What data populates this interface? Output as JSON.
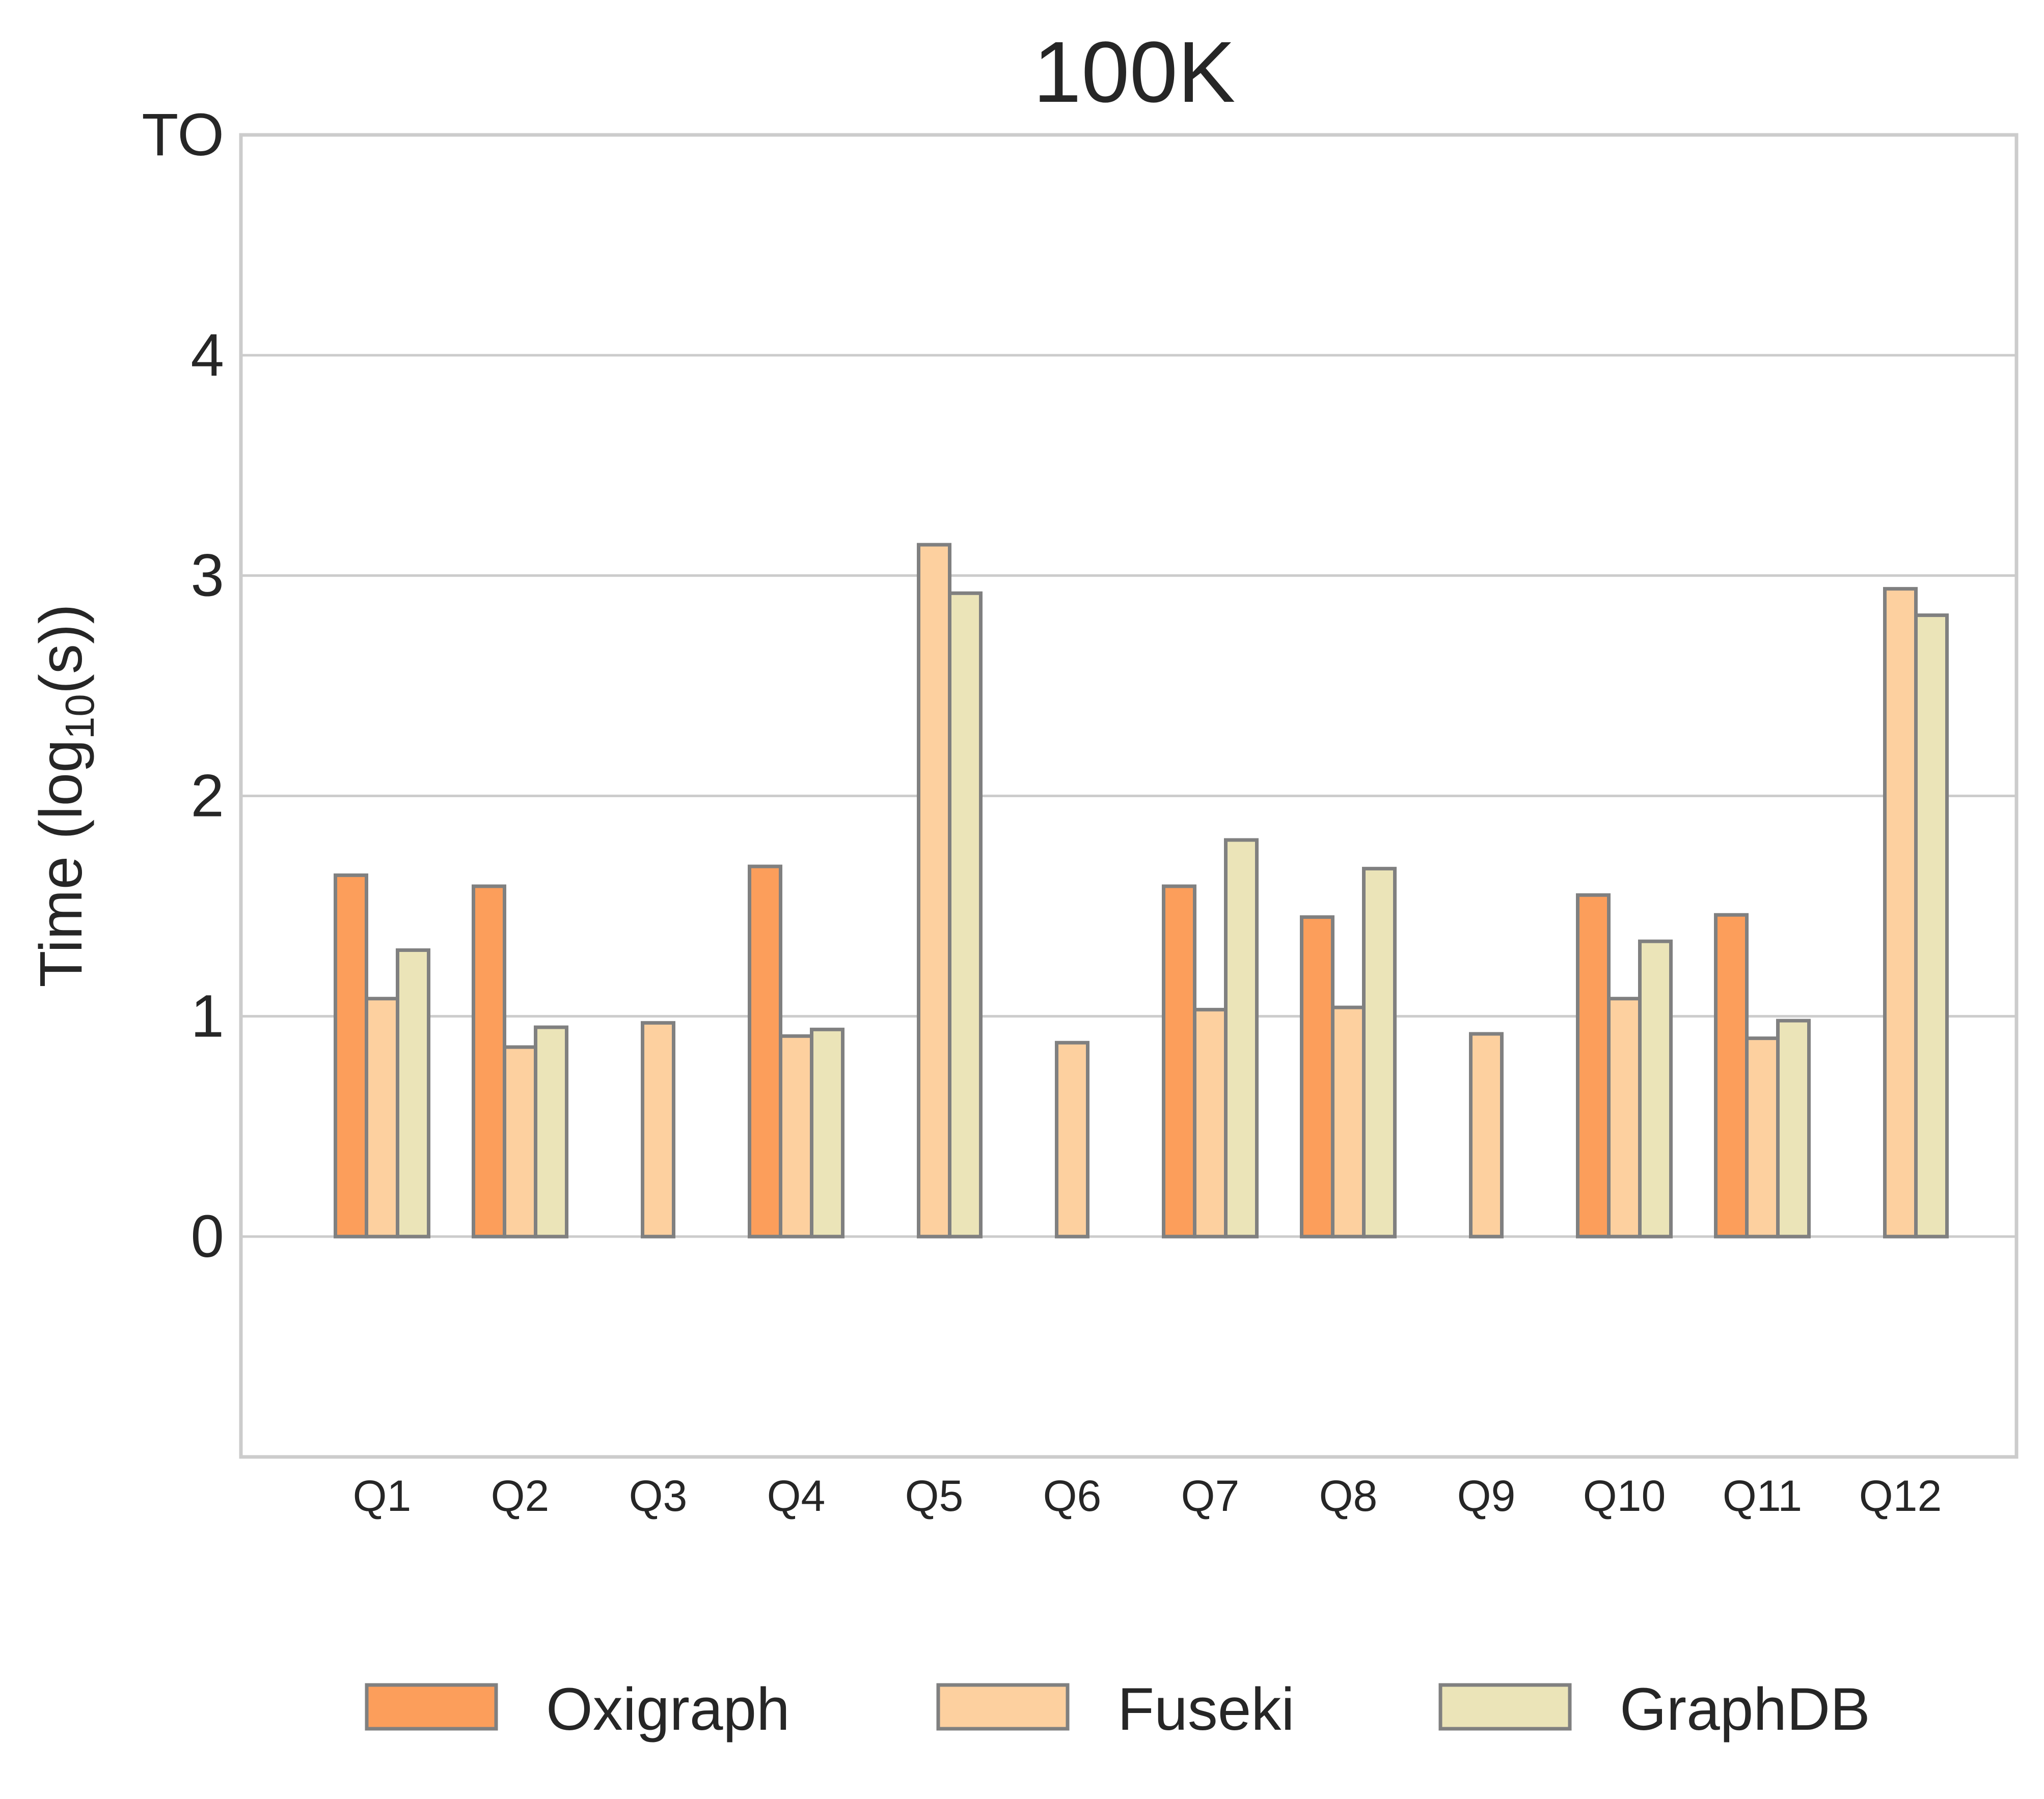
{
  "chart_data": {
    "type": "bar",
    "title": "100K",
    "ylabel": "Time (log10(s))",
    "ylabel_parts": {
      "pre": "Time (log",
      "sub": "10",
      "post": "(s))"
    },
    "xlabel": "",
    "ylim": [
      -1,
      5
    ],
    "yticks": [
      {
        "value": 0,
        "label": "0"
      },
      {
        "value": 1,
        "label": "1"
      },
      {
        "value": 2,
        "label": "2"
      },
      {
        "value": 3,
        "label": "3"
      },
      {
        "value": 4,
        "label": "4"
      },
      {
        "value": 5,
        "label": "TO"
      }
    ],
    "grid": "horizontal",
    "legend_position": "bottom-center",
    "categories": [
      "Q1",
      "Q2",
      "Q3",
      "Q4",
      "Q5",
      "Q6",
      "Q7",
      "Q8",
      "Q9",
      "Q10",
      "Q11",
      "Q12"
    ],
    "series": [
      {
        "name": "Oxigraph",
        "color": "#fc9e5b",
        "values": [
          1.64,
          1.59,
          null,
          1.68,
          null,
          null,
          1.59,
          1.45,
          null,
          1.55,
          1.46,
          null
        ]
      },
      {
        "name": "Fuseki",
        "color": "#fdd09f",
        "values": [
          1.08,
          0.86,
          0.97,
          0.91,
          3.14,
          0.88,
          1.03,
          1.04,
          0.92,
          1.08,
          0.9,
          2.94
        ]
      },
      {
        "name": "GraphDB",
        "color": "#ebe4b8",
        "values": [
          1.3,
          0.95,
          null,
          0.94,
          2.92,
          null,
          1.8,
          1.67,
          null,
          1.34,
          0.98,
          2.82
        ]
      }
    ],
    "bar_edge_color": "#808080",
    "axis_edge_color": "#cccccc",
    "grid_color": "#cccccc"
  }
}
